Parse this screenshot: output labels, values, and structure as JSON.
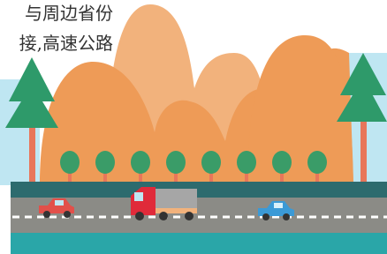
{
  "text": {
    "lines": [
      "与周边省份",
      "接,高速公路"
    ]
  }
}
